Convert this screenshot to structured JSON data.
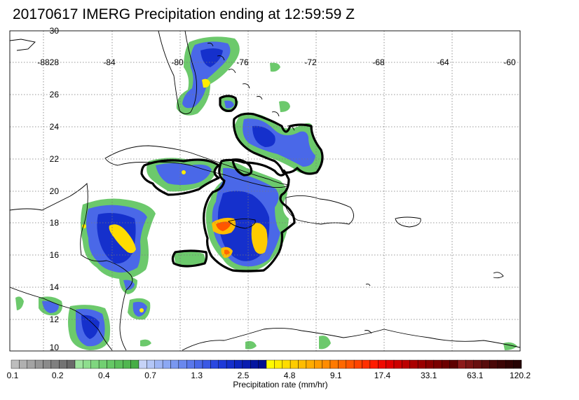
{
  "title": "20170617 IMERG Precipitation ending at 12:59:59 Z",
  "map": {
    "lon_range": [
      -90,
      -60
    ],
    "lat_range": [
      10,
      30
    ],
    "lon_ticks": [
      "-88",
      "-84",
      "-80",
      "-76",
      "-72",
      "-68",
      "-64",
      "-60"
    ],
    "lat_ticks": [
      "30",
      "28",
      "26",
      "24",
      "22",
      "20",
      "18",
      "16",
      "14",
      "12",
      "10"
    ],
    "gridlines": "dotted"
  },
  "colorbar": {
    "title": "Precipitation rate (mm/hr)",
    "tick_labels": [
      "0.1",
      "0.2",
      "0.4",
      "0.7",
      "1.3",
      "2.5",
      "4.8",
      "9.1",
      "17.4",
      "33.1",
      "63.1",
      "120.2"
    ],
    "colors": [
      "#bdbdbd",
      "#b0b0b0",
      "#a3a3a3",
      "#969696",
      "#8a8a8a",
      "#7f7f7f",
      "#737373",
      "#696969",
      "#9ee39e",
      "#8edd8e",
      "#7fd67f",
      "#72cf72",
      "#66c866",
      "#5bbf5b",
      "#50b650",
      "#46ad46",
      "#c6d3f7",
      "#b3c6f7",
      "#9fb6f5",
      "#8ca8f3",
      "#7a98f0",
      "#6a88ee",
      "#5a78eb",
      "#4a68e8",
      "#3a58e4",
      "#2a48e0",
      "#1e3ad8",
      "#1530cc",
      "#0d26bf",
      "#081db0",
      "#0416a0",
      "#010f90",
      "#fffa00",
      "#ffec00",
      "#ffdc00",
      "#ffcc00",
      "#ffbc00",
      "#ffac00",
      "#ff9c00",
      "#ff8c00",
      "#ff7a00",
      "#ff6800",
      "#ff5600",
      "#ff4400",
      "#ff3000",
      "#ff1c00",
      "#f00a00",
      "#e00000",
      "#cc0000",
      "#bb0000",
      "#aa0000",
      "#990000",
      "#880000",
      "#7a0000",
      "#6c0000",
      "#5e0000",
      "#8c1a1a",
      "#7a1515",
      "#681010",
      "#580c0c",
      "#4a0808",
      "#3c0505",
      "#300303",
      "#260202"
    ]
  }
}
